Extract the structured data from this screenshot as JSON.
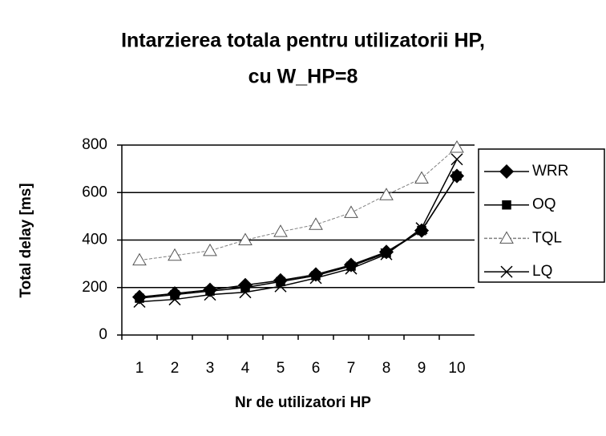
{
  "chart_data": {
    "type": "line",
    "title": [
      "Intarzierea totala pentru utilizatorii HP,",
      "cu W_HP=8"
    ],
    "x_label": "Nr de utilizatori HP",
    "y_label": "Total delay [ms]",
    "categories": [
      "1",
      "2",
      "3",
      "4",
      "5",
      "6",
      "7",
      "8",
      "9",
      "10"
    ],
    "series": [
      {
        "name": "WRR",
        "color": "#000000",
        "marker": "diamond",
        "values": [
          160,
          175,
          190,
          210,
          230,
          255,
          295,
          350,
          440,
          670
        ]
      },
      {
        "name": "OQ",
        "color": "#000000",
        "marker": "square",
        "values": [
          155,
          170,
          185,
          200,
          225,
          250,
          290,
          345,
          440,
          670
        ]
      },
      {
        "name": "TQL",
        "color": "#808080",
        "marker": "triangle",
        "values": [
          315,
          335,
          355,
          400,
          435,
          465,
          515,
          590,
          660,
          790
        ]
      },
      {
        "name": "LQ",
        "color": "#000000",
        "marker": "x",
        "values": [
          140,
          150,
          170,
          180,
          205,
          240,
          280,
          340,
          450,
          740
        ]
      }
    ],
    "ylim": [
      0,
      800
    ],
    "yticks": [
      0,
      200,
      400,
      600,
      800
    ],
    "grid": true,
    "legend": "right"
  }
}
